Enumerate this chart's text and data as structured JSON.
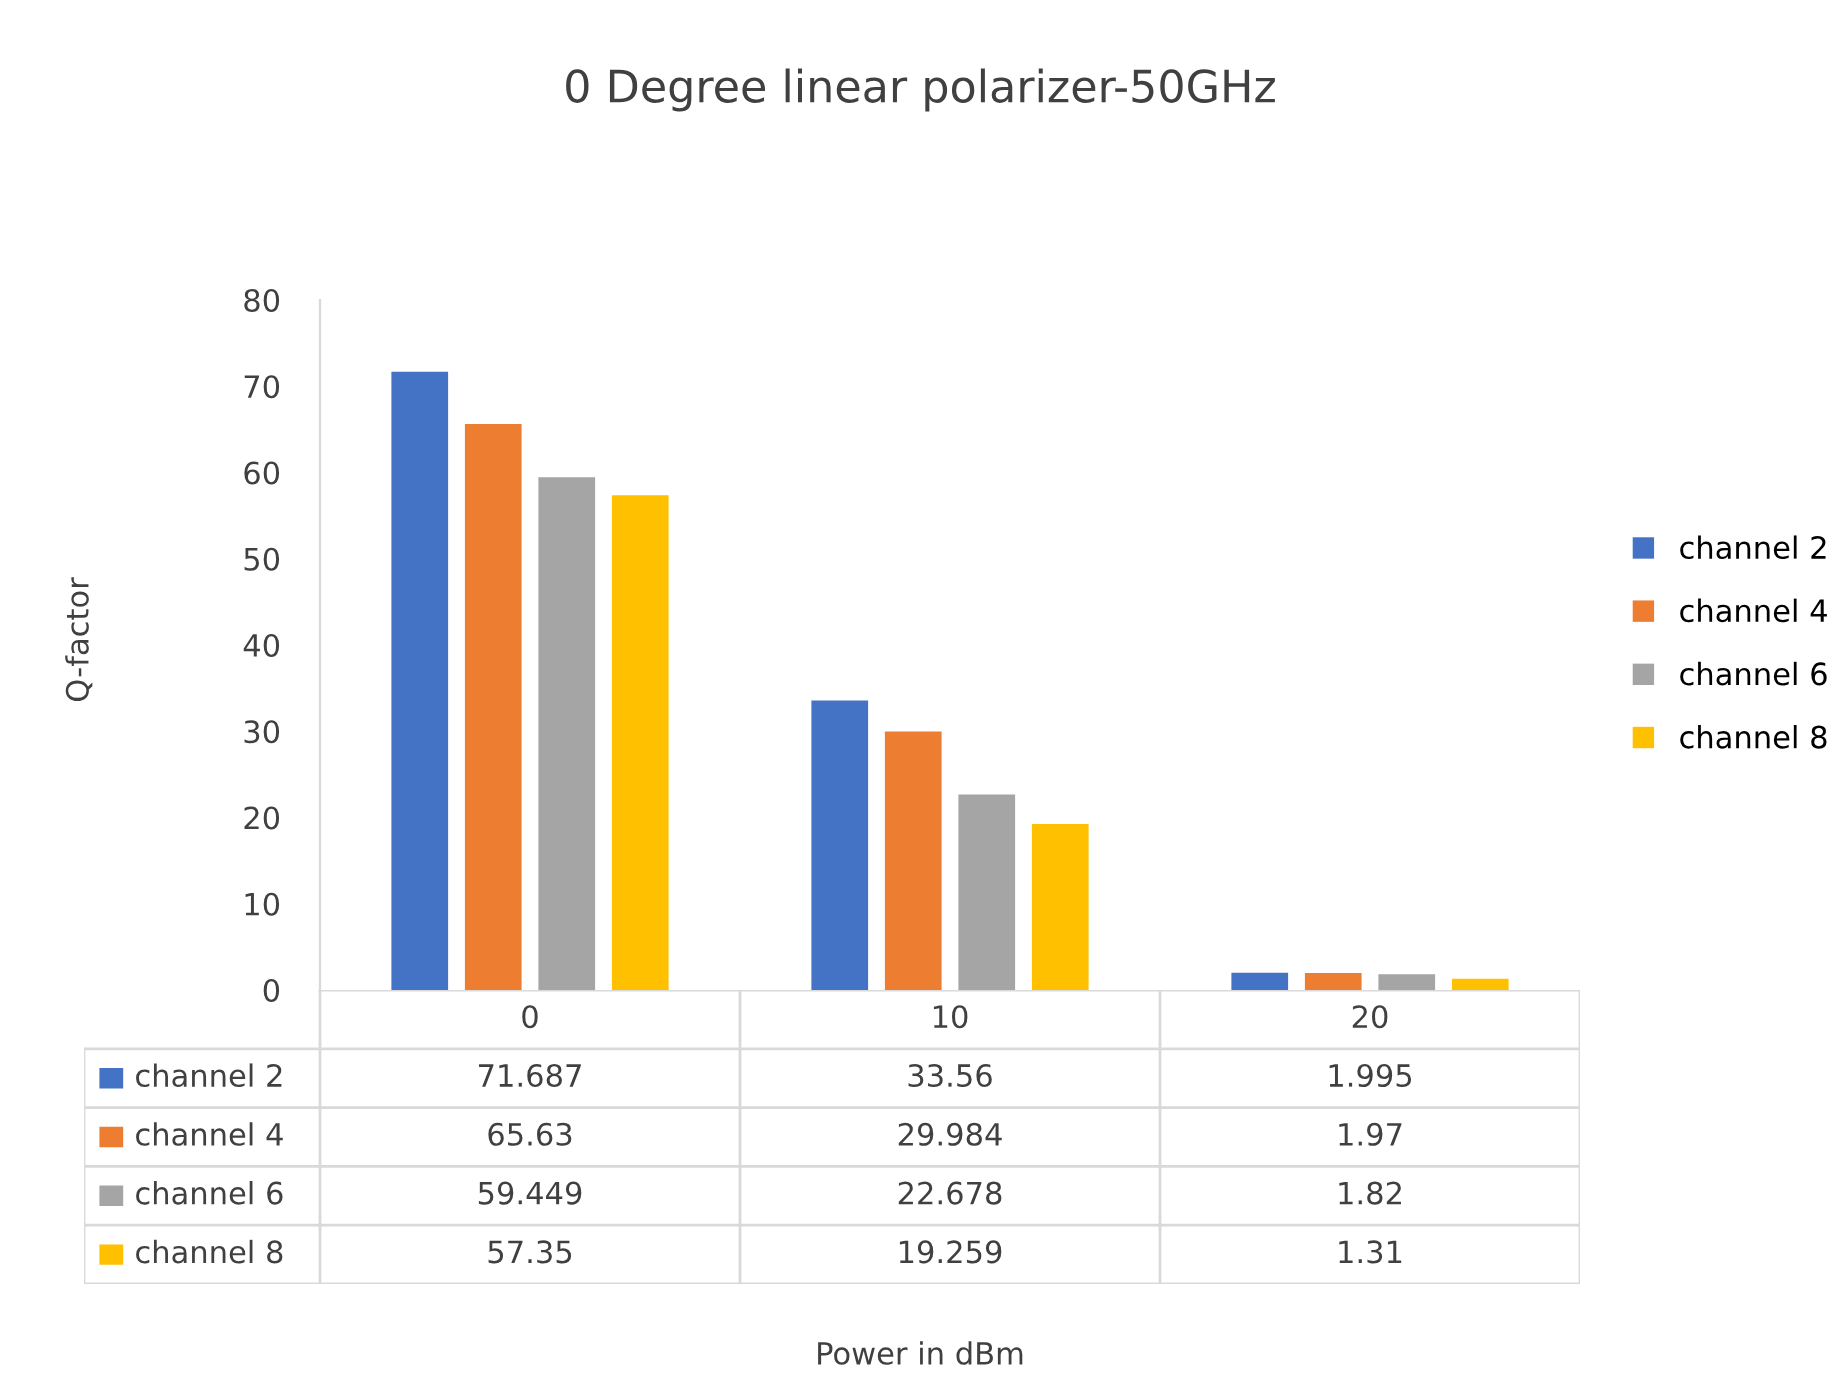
{
  "chart_data": {
    "type": "bar",
    "title": "0 Degree linear polarizer-50GHz",
    "annotations": [
      "Power in dBm"
    ],
    "ylabel": "Q-factor",
    "categories": [
      "0",
      "10",
      "20"
    ],
    "series": [
      {
        "name": "channel 2",
        "color": "#4472c4",
        "values": [
          71.687,
          33.56,
          1.995
        ]
      },
      {
        "name": "channel 4",
        "color": "#ed7d31",
        "values": [
          65.63,
          29.984,
          1.97
        ]
      },
      {
        "name": "channel 6",
        "color": "#a5a5a5",
        "values": [
          59.449,
          22.678,
          1.82
        ]
      },
      {
        "name": "channel 8",
        "color": "#ffc000",
        "values": [
          57.35,
          19.259,
          1.31
        ]
      }
    ],
    "ylim": [
      0,
      80
    ],
    "yticks": [
      0,
      10,
      20,
      30,
      40,
      50,
      60,
      70,
      80
    ],
    "legend": "right",
    "data_labels": true
  }
}
